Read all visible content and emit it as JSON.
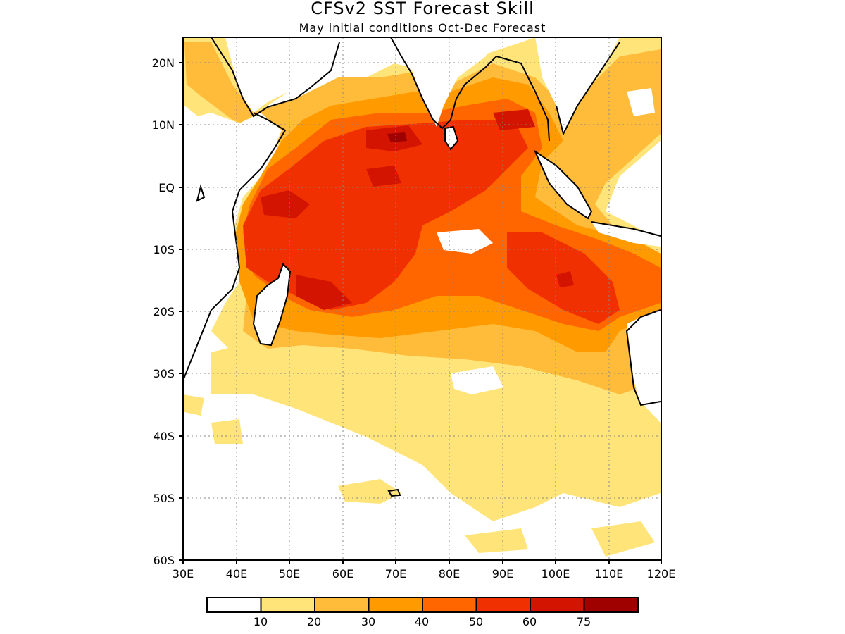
{
  "title": "CFSv2 SST Forecast Skill",
  "subtitle": "May initial conditions  Oct-Dec Forecast",
  "map": {
    "lon_range": [
      30,
      120
    ],
    "lat_range": [
      -60,
      24
    ],
    "lon_ticks": [
      "30E",
      "40E",
      "50E",
      "60E",
      "70E",
      "80E",
      "90E",
      "100E",
      "110E",
      "120E"
    ],
    "lat_ticks": [
      "20N",
      "10N",
      "EQ",
      "10S",
      "20S",
      "30S",
      "40S",
      "50S",
      "60S"
    ],
    "grid": "dotted"
  },
  "colorbar": {
    "labels": [
      "10",
      "20",
      "30",
      "40",
      "50",
      "60",
      "75"
    ],
    "colors": [
      "#ffffff",
      "#ffe47a",
      "#ffbb3a",
      "#ff9a00",
      "#ff6600",
      "#f03000",
      "#d21400",
      "#9f0000"
    ]
  },
  "colors": {
    "ocean_low": "#ffe47a",
    "ocean_mid": "#ff9a00",
    "ocean_high": "#f03000",
    "coast": "#000000"
  }
}
